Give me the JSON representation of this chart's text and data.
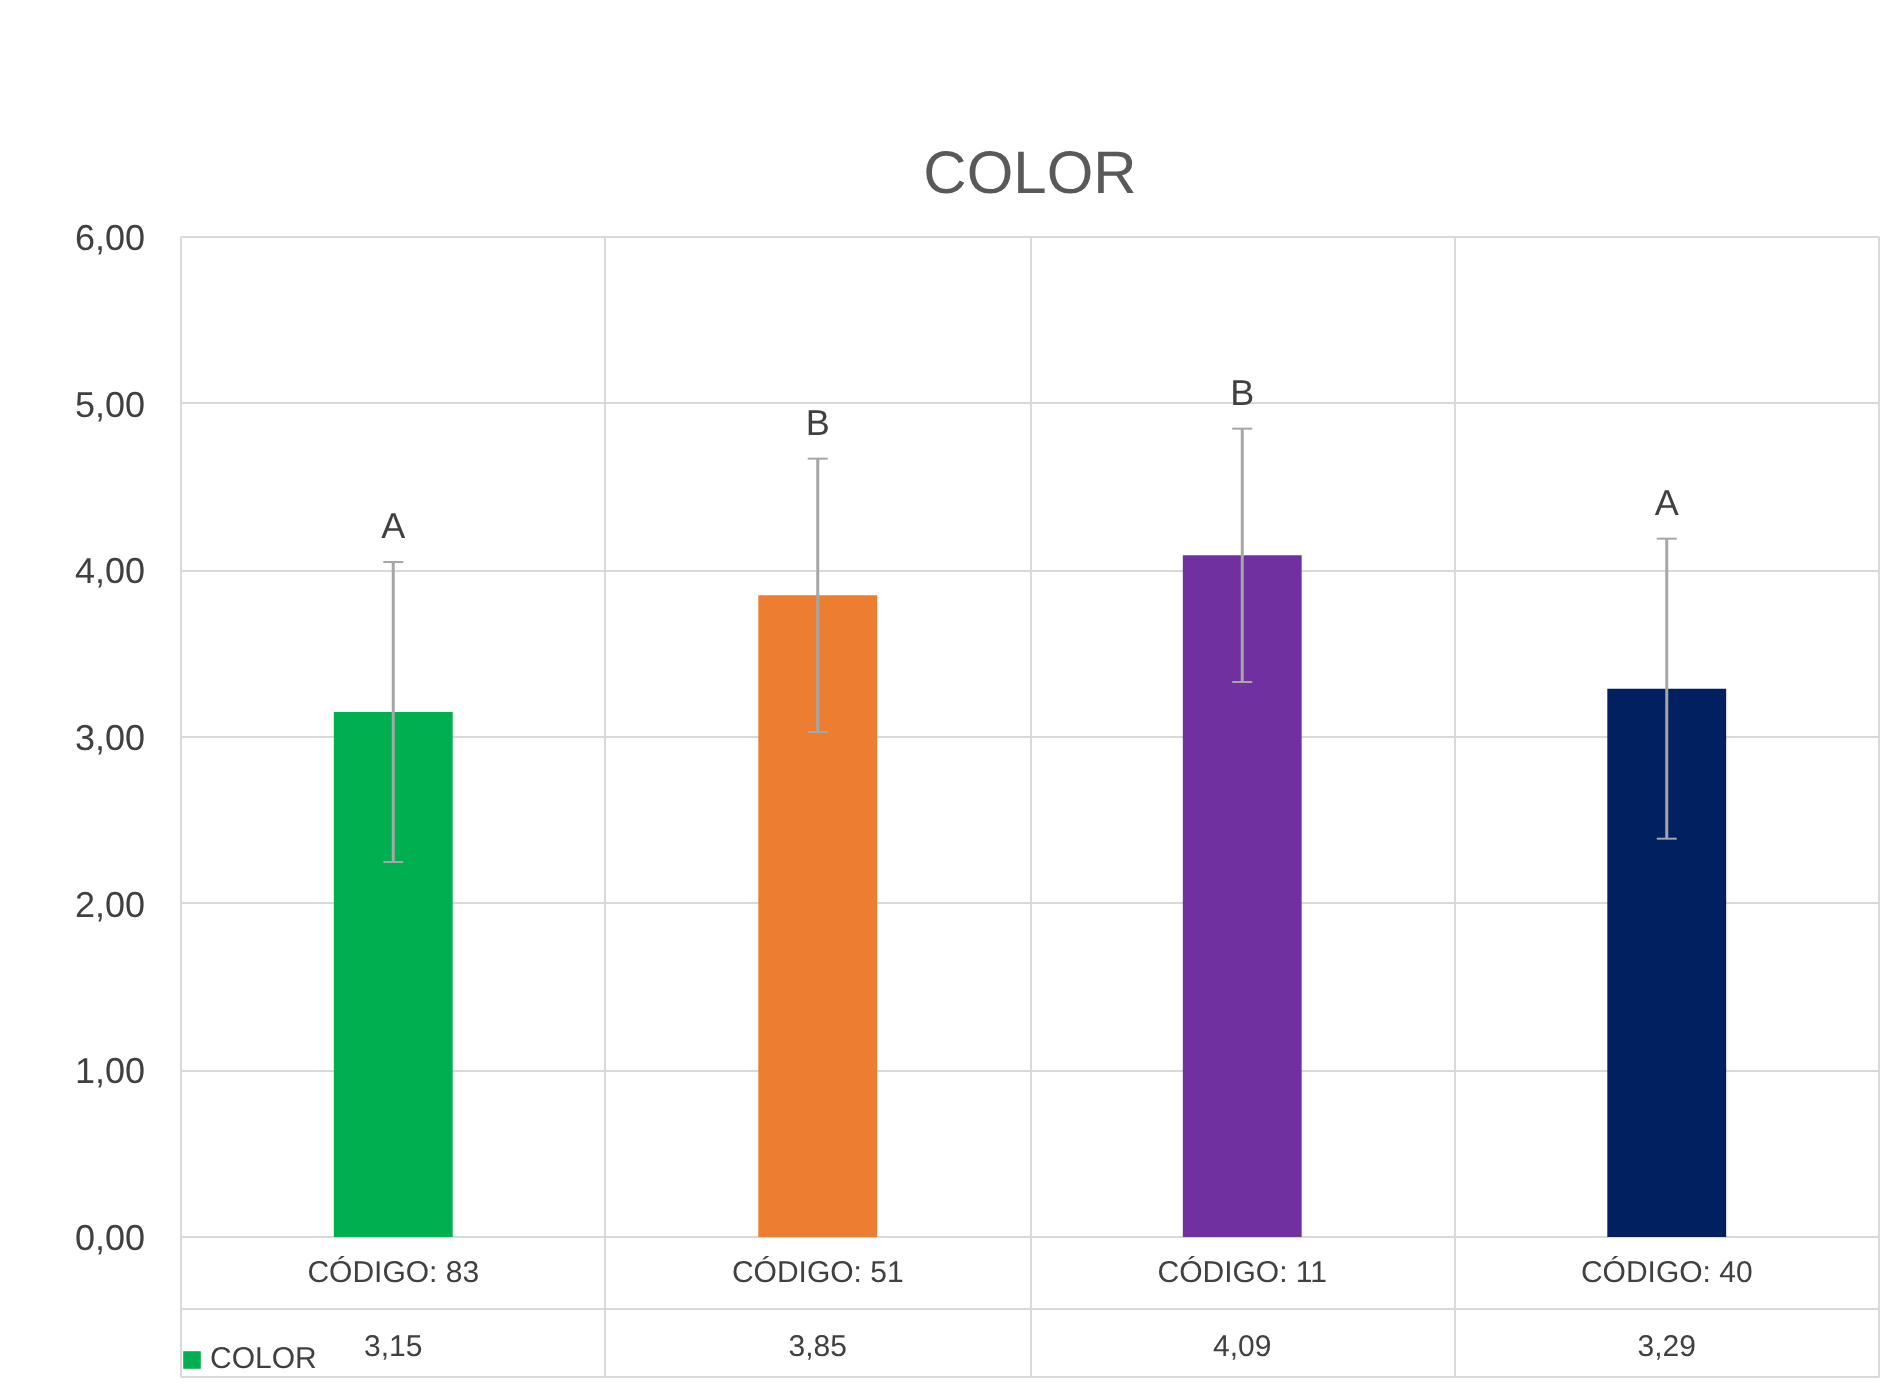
{
  "chart_data": {
    "type": "bar",
    "title": "COLOR",
    "categories": [
      "CÓDIGO: 83",
      "CÓDIGO: 51",
      "CÓDIGO: 11",
      "CÓDIGO: 40"
    ],
    "series": [
      {
        "name": "COLOR",
        "colors": [
          "#00b050",
          "#ed7d31",
          "#7030a0",
          "#002060"
        ],
        "values": [
          3.15,
          3.85,
          4.09,
          3.29
        ],
        "errors": [
          0.9,
          0.82,
          0.76,
          0.9
        ],
        "value_labels": [
          "3,15",
          "3,85",
          "4,09",
          "3,29"
        ]
      }
    ],
    "ylim": [
      0,
      6
    ],
    "yticks": [
      {
        "value": 0,
        "label": "0,00"
      },
      {
        "value": 1,
        "label": "1,00"
      },
      {
        "value": 2,
        "label": "2,00"
      },
      {
        "value": 3,
        "label": "3,00"
      },
      {
        "value": 4,
        "label": "4,00"
      },
      {
        "value": 5,
        "label": "5,00"
      },
      {
        "value": 6,
        "label": "6,00"
      }
    ],
    "grid": true,
    "legend": "bottom left",
    "annotations": [
      "A",
      "B",
      "B",
      "A"
    ]
  }
}
